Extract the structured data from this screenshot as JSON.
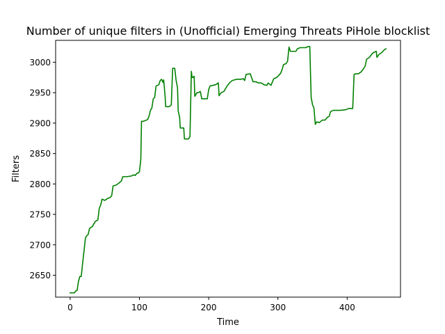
{
  "chart_data": {
    "type": "line",
    "title": "Number of unique filters in (Unofficial) Emerging Threats PiHole blocklist",
    "xlabel": "Time",
    "ylabel": "Filters",
    "xlim": [
      -21,
      477
    ],
    "ylim": [
      2614,
      3036
    ],
    "xticks": [
      0,
      100,
      200,
      300,
      400
    ],
    "yticks": [
      2650,
      2700,
      2750,
      2800,
      2850,
      2900,
      2950,
      3000
    ],
    "grid": false,
    "legend": "none",
    "series": [
      {
        "color": "#008000",
        "points": [
          [
            0,
            2621
          ],
          [
            6,
            2621
          ],
          [
            8,
            2624
          ],
          [
            10,
            2625
          ],
          [
            12,
            2640
          ],
          [
            14,
            2648
          ],
          [
            16,
            2648
          ],
          [
            18,
            2670
          ],
          [
            20,
            2690
          ],
          [
            22,
            2711
          ],
          [
            24,
            2715
          ],
          [
            26,
            2717
          ],
          [
            28,
            2727
          ],
          [
            32,
            2730
          ],
          [
            36,
            2738
          ],
          [
            40,
            2741
          ],
          [
            42,
            2760
          ],
          [
            44,
            2765
          ],
          [
            46,
            2775
          ],
          [
            50,
            2773
          ],
          [
            54,
            2776
          ],
          [
            58,
            2778
          ],
          [
            60,
            2781
          ],
          [
            62,
            2797
          ],
          [
            66,
            2798
          ],
          [
            70,
            2801
          ],
          [
            74,
            2805
          ],
          [
            76,
            2812
          ],
          [
            82,
            2812
          ],
          [
            88,
            2813
          ],
          [
            92,
            2815
          ],
          [
            94,
            2814
          ],
          [
            96,
            2817
          ],
          [
            98,
            2818
          ],
          [
            100,
            2820
          ],
          [
            102,
            2840
          ],
          [
            103,
            2903
          ],
          [
            106,
            2903
          ],
          [
            110,
            2905
          ],
          [
            112,
            2906
          ],
          [
            114,
            2912
          ],
          [
            116,
            2921
          ],
          [
            118,
            2925
          ],
          [
            120,
            2940
          ],
          [
            122,
            2942
          ],
          [
            124,
            2961
          ],
          [
            128,
            2963
          ],
          [
            130,
            2970
          ],
          [
            132,
            2972
          ],
          [
            134,
            2967
          ],
          [
            135,
            2971
          ],
          [
            137,
            2945
          ],
          [
            138,
            2927
          ],
          [
            140,
            2927
          ],
          [
            143,
            2927
          ],
          [
            146,
            2930
          ],
          [
            148,
            2990
          ],
          [
            151,
            2990
          ],
          [
            153,
            2970
          ],
          [
            155,
            2958
          ],
          [
            156,
            2920
          ],
          [
            158,
            2910
          ],
          [
            159,
            2892
          ],
          [
            164,
            2892
          ],
          [
            165,
            2874
          ],
          [
            171,
            2874
          ],
          [
            173,
            2878
          ],
          [
            175,
            2985
          ],
          [
            176,
            2975
          ],
          [
            177,
            2975
          ],
          [
            179,
            2977
          ],
          [
            180,
            2944
          ],
          [
            183,
            2950
          ],
          [
            185,
            2950
          ],
          [
            188,
            2952
          ],
          [
            190,
            2940
          ],
          [
            194,
            2940
          ],
          [
            198,
            2940
          ],
          [
            200,
            2955
          ],
          [
            202,
            2961
          ],
          [
            206,
            2962
          ],
          [
            210,
            2963
          ],
          [
            214,
            2966
          ],
          [
            215,
            2945
          ],
          [
            218,
            2950
          ],
          [
            222,
            2952
          ],
          [
            226,
            2960
          ],
          [
            230,
            2966
          ],
          [
            234,
            2970
          ],
          [
            240,
            2972
          ],
          [
            246,
            2972
          ],
          [
            250,
            2973
          ],
          [
            252,
            2970
          ],
          [
            254,
            2980
          ],
          [
            260,
            2981
          ],
          [
            262,
            2975
          ],
          [
            264,
            2968
          ],
          [
            268,
            2968
          ],
          [
            272,
            2966
          ],
          [
            276,
            2966
          ],
          [
            280,
            2963
          ],
          [
            284,
            2962
          ],
          [
            286,
            2966
          ],
          [
            290,
            2962
          ],
          [
            294,
            2973
          ],
          [
            298,
            2975
          ],
          [
            300,
            2977
          ],
          [
            304,
            2982
          ],
          [
            306,
            2988
          ],
          [
            308,
            2996
          ],
          [
            312,
            2998
          ],
          [
            314,
            3002
          ],
          [
            316,
            3025
          ],
          [
            318,
            3018
          ],
          [
            322,
            3018
          ],
          [
            326,
            3018
          ],
          [
            328,
            3022
          ],
          [
            332,
            3024
          ],
          [
            340,
            3024
          ],
          [
            344,
            3026
          ],
          [
            346,
            3026
          ],
          [
            348,
            2942
          ],
          [
            350,
            2930
          ],
          [
            352,
            2925
          ],
          [
            354,
            2898
          ],
          [
            356,
            2902
          ],
          [
            360,
            2901
          ],
          [
            364,
            2905
          ],
          [
            368,
            2905
          ],
          [
            372,
            2910
          ],
          [
            374,
            2911
          ],
          [
            376,
            2919
          ],
          [
            380,
            2921
          ],
          [
            390,
            2921
          ],
          [
            398,
            2922
          ],
          [
            402,
            2924
          ],
          [
            406,
            2924
          ],
          [
            408,
            2924
          ],
          [
            410,
            2980
          ],
          [
            412,
            2981
          ],
          [
            416,
            2981
          ],
          [
            420,
            2984
          ],
          [
            424,
            2990
          ],
          [
            426,
            2994
          ],
          [
            428,
            3005
          ],
          [
            432,
            3008
          ],
          [
            436,
            3014
          ],
          [
            438,
            3016
          ],
          [
            442,
            3018
          ],
          [
            443,
            3008
          ],
          [
            446,
            3013
          ],
          [
            450,
            3016
          ],
          [
            454,
            3021
          ],
          [
            456,
            3022
          ]
        ]
      }
    ]
  }
}
